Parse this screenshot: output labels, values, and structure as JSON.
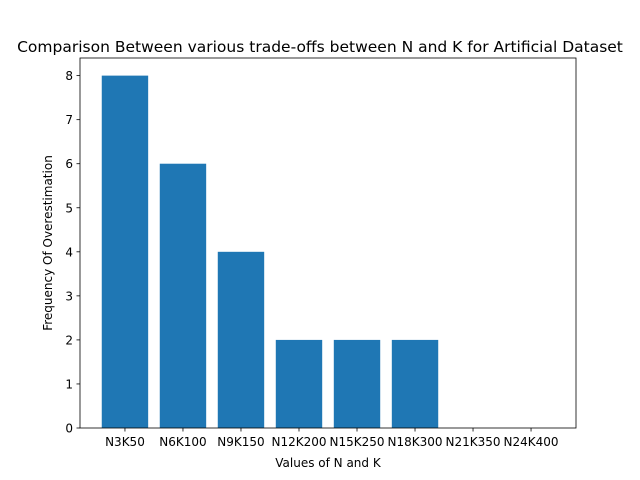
{
  "chart_data": {
    "type": "bar",
    "title": "Comparison Between various trade-offs between N and K for Artificial Dataset",
    "xlabel": "Values of N and K",
    "ylabel": "Frequency Of Overestimation",
    "categories": [
      "N3K50",
      "N6K100",
      "N9K150",
      "N12K200",
      "N15K250",
      "N18K300",
      "N21K350",
      "N24K400"
    ],
    "values": [
      8,
      6,
      4,
      2,
      2,
      2,
      0,
      0
    ],
    "ylim": [
      0,
      8.4
    ],
    "yticks": [
      0,
      1,
      2,
      3,
      4,
      5,
      6,
      7,
      8
    ],
    "grid": false,
    "legend": "none",
    "bar_color": "#1f77b4"
  }
}
